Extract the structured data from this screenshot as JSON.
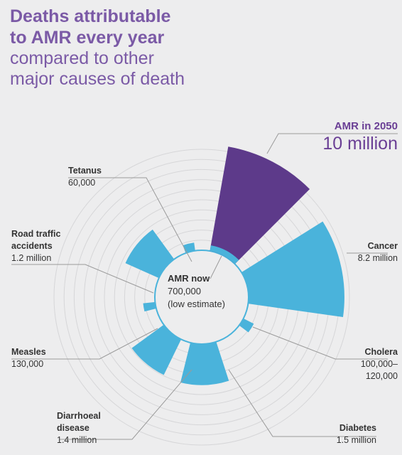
{
  "title": {
    "bold_line1": "Deaths attributable",
    "bold_line2": "to AMR every year",
    "light_line1": "compared to other",
    "light_line2": "major causes of death"
  },
  "colors": {
    "amr_2050": "#5d3a8a",
    "other_causes": "#4ab3db",
    "grid": "#d6d6d8",
    "leader": "#9a9a9a"
  },
  "labels": {
    "amr_2050": {
      "name": "AMR in 2050",
      "value": "10 million"
    },
    "amr_now": {
      "name": "AMR now",
      "value": "700,000",
      "note": "(low estimate)"
    },
    "cancer": {
      "name": "Cancer",
      "value": "8.2 million"
    },
    "cholera": {
      "name": "Cholera",
      "value_line1": "100,000–",
      "value_line2": "120,000"
    },
    "diabetes": {
      "name": "Diabetes",
      "value": "1.5 million"
    },
    "diarrhoeal": {
      "name_line1": "Diarrhoeal",
      "name_line2": "disease",
      "value": "1.4 million"
    },
    "measles": {
      "name": "Measles",
      "value": "130,000"
    },
    "road": {
      "name_line1": "Road traffic",
      "name_line2": "accidents",
      "value": "1.2 million"
    },
    "tetanus": {
      "name": "Tetanus",
      "value": "60,000"
    }
  },
  "chart_data": {
    "type": "polar-area",
    "unit": "deaths per year",
    "series": [
      {
        "category": "AMR in 2050",
        "value": 10000000
      },
      {
        "category": "Cancer",
        "value": 8200000
      },
      {
        "category": "Cholera",
        "value": 120000
      },
      {
        "category": "Diabetes",
        "value": 1500000
      },
      {
        "category": "Diarrhoeal disease",
        "value": 1400000
      },
      {
        "category": "Measles",
        "value": 130000
      },
      {
        "category": "Road traffic accidents",
        "value": 1200000
      },
      {
        "category": "Tetanus",
        "value": 60000
      },
      {
        "category": "AMR now",
        "value": 700000
      }
    ]
  }
}
